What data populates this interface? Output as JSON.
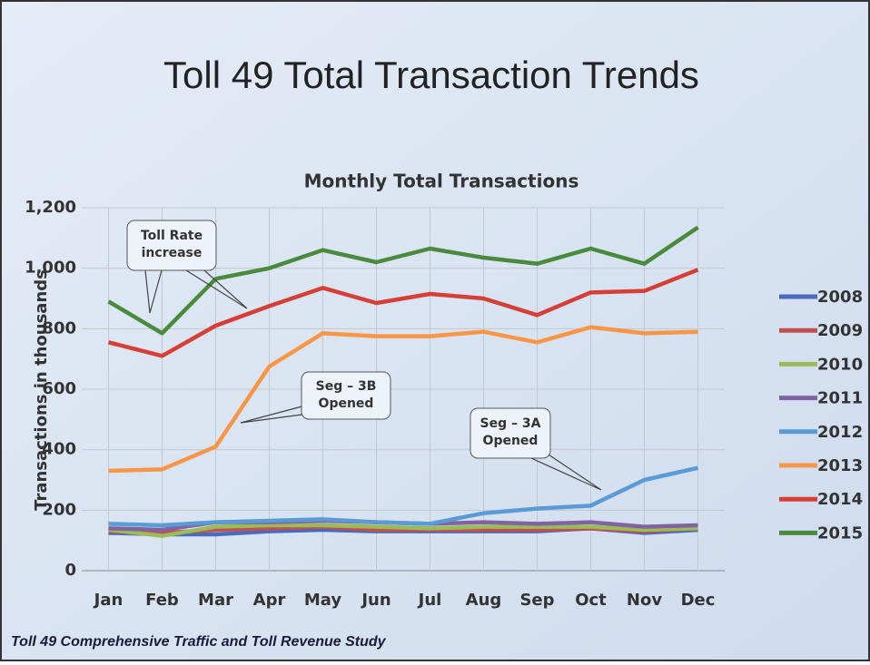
{
  "slide_title": "Toll 49 Total Transaction Trends",
  "footer": "Toll 49 Comprehensive Traffic and Toll Revenue Study",
  "chart_data": {
    "type": "line",
    "title": "Monthly Total Transactions",
    "y_label": "Transactions in thousands",
    "categories": [
      "Jan",
      "Feb",
      "Mar",
      "Apr",
      "May",
      "Jun",
      "Jul",
      "Aug",
      "Sep",
      "Oct",
      "Nov",
      "Dec"
    ],
    "series": [
      {
        "name": "2008",
        "color": "#4a6bbd",
        "values": [
          125,
          120,
          120,
          130,
          135,
          130,
          130,
          130,
          130,
          140,
          125,
          135
        ]
      },
      {
        "name": "2009",
        "color": "#c0504d",
        "values": [
          130,
          125,
          135,
          140,
          145,
          135,
          135,
          135,
          135,
          140,
          130,
          140
        ]
      },
      {
        "name": "2010",
        "color": "#9bbb59",
        "values": [
          135,
          115,
          145,
          150,
          150,
          145,
          140,
          145,
          145,
          145,
          135,
          140
        ]
      },
      {
        "name": "2011",
        "color": "#8064a2",
        "values": [
          140,
          135,
          160,
          160,
          165,
          160,
          155,
          160,
          155,
          160,
          145,
          150
        ]
      },
      {
        "name": "2012",
        "color": "#5b9bd5",
        "values": [
          155,
          150,
          160,
          165,
          170,
          160,
          155,
          190,
          205,
          215,
          300,
          340
        ]
      },
      {
        "name": "2013",
        "color": "#f79646",
        "values": [
          330,
          335,
          410,
          675,
          785,
          775,
          775,
          790,
          755,
          805,
          785,
          790
        ]
      },
      {
        "name": "2014",
        "color": "#d63f36",
        "values": [
          755,
          710,
          810,
          875,
          935,
          885,
          915,
          900,
          845,
          920,
          925,
          995
        ]
      },
      {
        "name": "2015",
        "color": "#4a8a3c",
        "values": [
          890,
          785,
          965,
          1000,
          1060,
          1020,
          1065,
          1035,
          1015,
          1065,
          1015,
          1135
        ]
      }
    ],
    "ylim": [
      0,
      1200
    ],
    "yticks": [
      0,
      200,
      400,
      600,
      800,
      {
        "value": 1000,
        "label": "1,000"
      },
      {
        "value": 1200,
        "label": "1,200"
      }
    ],
    "grid": true,
    "legend": "right",
    "annotations": [
      {
        "lines": [
          "Toll Rate",
          "increase"
        ]
      },
      {
        "lines": [
          "Seg – 3B",
          "Opened"
        ]
      },
      {
        "lines": [
          "Seg – 3A",
          "Opened"
        ]
      }
    ]
  }
}
